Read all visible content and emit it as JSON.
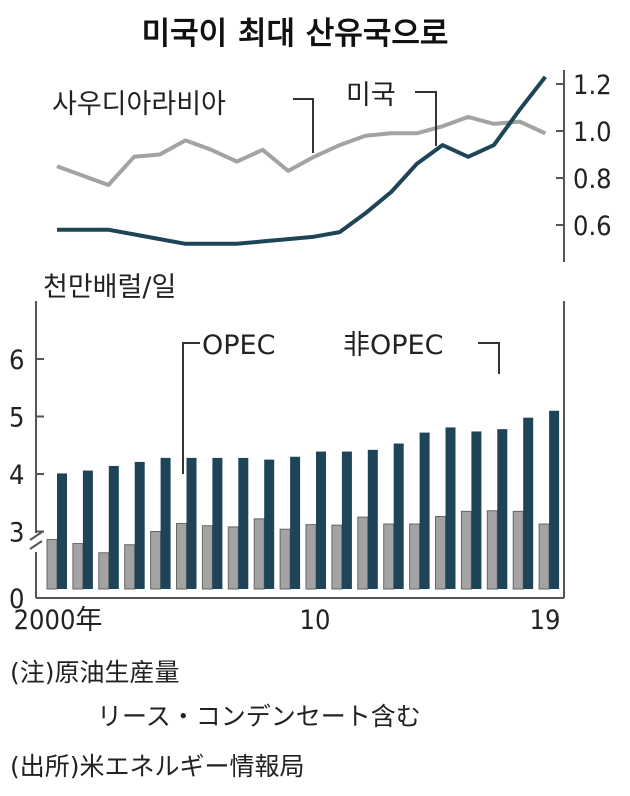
{
  "colors": {
    "dark": "#1d4457",
    "gray": "#a3a3a3",
    "grayStroke": "#666666",
    "axis": "#555555"
  },
  "chart_data": [
    {
      "type": "line",
      "title": "미국이 최대 산유국으로",
      "x": [
        2000,
        2001,
        2002,
        2003,
        2004,
        2005,
        2006,
        2007,
        2008,
        2009,
        2010,
        2011,
        2012,
        2013,
        2014,
        2015,
        2016,
        2017,
        2018,
        2019
      ],
      "series": [
        {
          "name": "사우디아라비아",
          "color": "#a3a3a3",
          "values": [
            0.85,
            0.81,
            0.77,
            0.89,
            0.9,
            0.96,
            0.92,
            0.87,
            0.92,
            0.83,
            0.89,
            0.94,
            0.98,
            0.99,
            0.99,
            1.02,
            1.06,
            1.03,
            1.04,
            0.99
          ]
        },
        {
          "name": "미국",
          "color": "#1d4457",
          "values": [
            0.58,
            0.58,
            0.58,
            0.56,
            0.54,
            0.52,
            0.52,
            0.52,
            0.53,
            0.54,
            0.55,
            0.57,
            0.65,
            0.74,
            0.86,
            0.94,
            0.89,
            0.94,
            1.09,
            1.23
          ]
        }
      ],
      "y_ticks": [
        "0.6",
        "0.8",
        "1.0",
        "1.2"
      ],
      "ylim": [
        0.5,
        1.3
      ]
    },
    {
      "type": "bar",
      "ylabel": "천만배럴/일",
      "categories": [
        2000,
        2001,
        2002,
        2003,
        2004,
        2005,
        2006,
        2007,
        2008,
        2009,
        2010,
        2011,
        2012,
        2013,
        2014,
        2015,
        2016,
        2017,
        2018,
        2019
      ],
      "x_tick_labels": [
        "2000年",
        "10",
        "19"
      ],
      "y_ticks": [
        "0",
        "3",
        "4",
        "5",
        "6"
      ],
      "ylim": [
        0,
        6
      ],
      "axis_break": true,
      "series": [
        {
          "name": "OPEC",
          "color": "#a3a3a3",
          "values": [
            2.86,
            2.79,
            2.63,
            2.77,
            3.0,
            3.14,
            3.1,
            3.08,
            3.22,
            3.04,
            3.12,
            3.11,
            3.25,
            3.13,
            3.13,
            3.26,
            3.35,
            3.36,
            3.35,
            3.13
          ]
        },
        {
          "name": "非OPEC",
          "color": "#1d4457",
          "values": [
            4.01,
            4.06,
            4.14,
            4.21,
            4.28,
            4.28,
            4.28,
            4.28,
            4.25,
            4.3,
            4.39,
            4.39,
            4.42,
            4.53,
            4.72,
            4.81,
            4.74,
            4.78,
            4.98,
            5.1
          ]
        }
      ]
    }
  ],
  "notes": {
    "line1": "(注)原油生産量",
    "line2": "リース・コンデンセート含む",
    "line3": "(出所)米エネルギー情報局"
  }
}
